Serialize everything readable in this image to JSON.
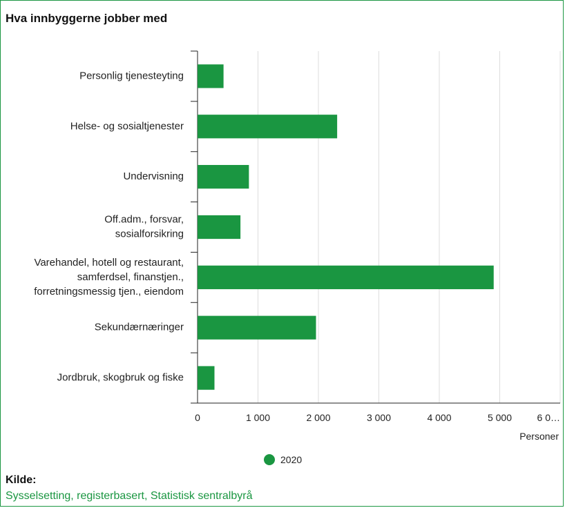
{
  "title": "Hva innbyggerne jobber med",
  "colors": {
    "bar": "#1a9641",
    "border": "#1a9641",
    "link": "#1a9641",
    "grid": "#dddddd",
    "axis": "#222222"
  },
  "chart_data": {
    "type": "bar",
    "orientation": "horizontal",
    "title": "Hva innbyggerne jobber med",
    "categories": [
      [
        "Personlig tjenesteyting"
      ],
      [
        "Helse- og sosialtjenester"
      ],
      [
        "Undervisning"
      ],
      [
        "Off.adm., forsvar,",
        "sosialforsikring"
      ],
      [
        "Varehandel, hotell og restaurant,",
        "samferdsel, finanstjen.,",
        "forretningsmessig tjen., eiendom"
      ],
      [
        "Sekundærnæringer"
      ],
      [
        "Jordbruk, skogbruk og fiske"
      ]
    ],
    "series": [
      {
        "name": "2020",
        "values": [
          430,
          2310,
          850,
          710,
          4900,
          1960,
          280
        ]
      }
    ],
    "xlabel": "Personer",
    "xlim": [
      0,
      6000
    ],
    "xticks": [
      0,
      1000,
      2000,
      3000,
      4000,
      5000,
      6000
    ],
    "xtick_labels": [
      "0",
      "1 000",
      "2 000",
      "3 000",
      "4 000",
      "5 000",
      "6 0…"
    ],
    "grid": true,
    "legend": "bottom"
  },
  "source": {
    "label": "Kilde:",
    "link_text": "Sysselsetting, registerbasert, Statistisk sentralbyrå"
  }
}
